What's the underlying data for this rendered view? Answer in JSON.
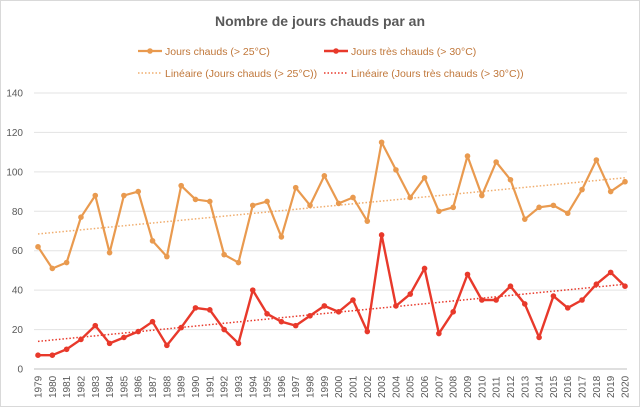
{
  "chart_data": {
    "type": "line",
    "title": "Nombre de jours chauds par an",
    "xlabel": "",
    "ylabel": "",
    "ylim": [
      0,
      140
    ],
    "y_ticks": [
      0,
      20,
      40,
      60,
      80,
      100,
      120,
      140
    ],
    "grid": true,
    "legend_position": "top",
    "categories": [
      "1979",
      "1980",
      "1981",
      "1982",
      "1983",
      "1984",
      "1985",
      "1986",
      "1987",
      "1988",
      "1989",
      "1990",
      "1991",
      "1992",
      "1993",
      "1994",
      "1995",
      "1996",
      "1997",
      "1998",
      "1999",
      "2000",
      "2001",
      "2002",
      "2003",
      "2004",
      "2005",
      "2006",
      "2007",
      "2008",
      "2009",
      "2010",
      "2011",
      "2012",
      "2013",
      "2014",
      "2015",
      "2016",
      "2017",
      "2018",
      "2019",
      "2020"
    ],
    "series": [
      {
        "name": "Jours chauds (> 25°C)",
        "color": "#e99a4f",
        "values": [
          62,
          51,
          54,
          77,
          88,
          59,
          88,
          90,
          65,
          57,
          93,
          86,
          85,
          58,
          54,
          83,
          85,
          67,
          92,
          83,
          98,
          84,
          87,
          75,
          115,
          101,
          87,
          97,
          80,
          82,
          108,
          88,
          105,
          96,
          76,
          82,
          83,
          79,
          91,
          106,
          90,
          95
        ]
      },
      {
        "name": "Jours très chauds (> 30°C)",
        "color": "#e8392b",
        "values": [
          7,
          7,
          10,
          15,
          22,
          13,
          16,
          19,
          24,
          12,
          21,
          31,
          30,
          20,
          13,
          40,
          28,
          24,
          22,
          27,
          32,
          29,
          35,
          19,
          68,
          32,
          38,
          51,
          18,
          29,
          48,
          35,
          35,
          42,
          33,
          16,
          37,
          31,
          35,
          43,
          49,
          42
        ]
      }
    ],
    "trendlines": [
      {
        "name": "Linéaire (Jours chauds (> 25°C))",
        "color": "#f0ad6e",
        "start": 68.5,
        "end": 97
      },
      {
        "name": "Linéaire (Jours très chauds (> 30°C))",
        "color": "#e8392b",
        "start": 14,
        "end": 43
      }
    ]
  }
}
